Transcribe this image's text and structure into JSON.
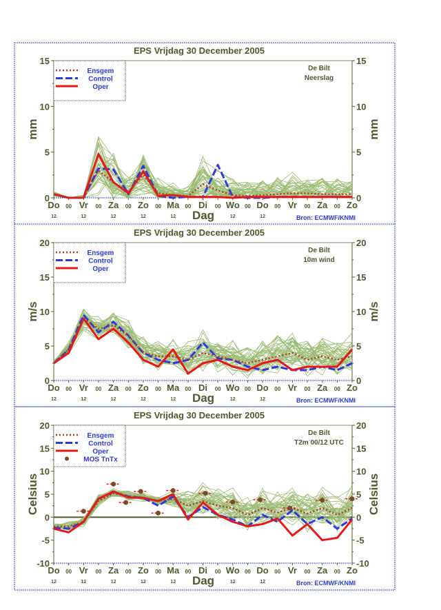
{
  "colors": {
    "text": "#4d5a2e",
    "ensemble": "#9bbb72",
    "ensgem": "#b23a2a",
    "control": "#2b3be0",
    "oper": "#e81818",
    "frame": "#3344cc",
    "legend_text": "#2b3be0"
  },
  "x_axis": {
    "label": "Dag",
    "ticks": [
      "Do",
      "00",
      "Vr",
      "00",
      "Za",
      "00",
      "Zo",
      "00",
      "Ma",
      "00",
      "Di",
      "00",
      "Wo",
      "00",
      "Do",
      "00",
      "Vr",
      "00",
      "Za",
      "00",
      "Zo"
    ],
    "sub_ticks": [
      "12",
      "",
      "12",
      "",
      "12",
      "",
      "12",
      "",
      "12",
      "",
      "",
      "",
      "12",
      "",
      "12",
      "",
      "",
      "",
      "",
      "",
      ""
    ],
    "source": "Bron: ECMWF/KNMI"
  },
  "chart_data": [
    {
      "type": "line",
      "title": "EPS  Vrijdag   30 December  2005",
      "station": "De Bilt",
      "variable": "Neerslag",
      "ylabel": "mm",
      "ylim": [
        0,
        15
      ],
      "yticks": [
        0,
        5,
        10,
        15
      ],
      "legend": [
        "Ensgem",
        "Control",
        "Oper"
      ],
      "legend_position": "top-left",
      "x_hours_step": 12,
      "series": [
        {
          "name": "Ensgem",
          "values": [
            0.4,
            0,
            0,
            3.0,
            1.7,
            0.7,
            2.5,
            0.5,
            0.3,
            0.2,
            1.5,
            0.8,
            0.3,
            0.2,
            0.3,
            0.4,
            0.5,
            0.5,
            0.4,
            0.4,
            0.4
          ]
        },
        {
          "name": "Control",
          "values": [
            0.4,
            0,
            0,
            3.2,
            3.1,
            0.4,
            3.5,
            0.2,
            0,
            0.1,
            0.1,
            3.6,
            0.1,
            0,
            0,
            0.1,
            0.1,
            0.1,
            0.1,
            0.1,
            0.1
          ]
        },
        {
          "name": "Oper",
          "values": [
            0.4,
            0,
            0,
            4.8,
            1.7,
            0.5,
            2.9,
            0.2,
            0.3,
            0.1,
            0.1,
            0.1,
            0,
            0.1,
            0.1,
            0.1,
            0.1,
            0.1,
            0.1,
            0.1,
            0.1
          ]
        }
      ],
      "ensemble_spread": [
        0.2,
        0.1,
        0.3,
        2.8,
        2.2,
        1.5,
        2.2,
        1.2,
        1.0,
        1.0,
        2.8,
        1.6,
        1.4,
        1.2,
        1.4,
        1.6,
        1.6,
        1.5,
        1.4,
        1.4,
        1.2
      ],
      "ensemble_floor": 0
    },
    {
      "type": "line",
      "title": "EPS  Vrijdag   30 December  2005",
      "station": "De Bilt",
      "variable": "10m wind",
      "ylabel": "m/s",
      "ylim": [
        0,
        20
      ],
      "yticks": [
        0,
        5,
        10,
        15,
        20
      ],
      "legend": [
        "Ensgem",
        "Control",
        "Oper"
      ],
      "legend_position": "top-left",
      "x_hours_step": 12,
      "series": [
        {
          "name": "Ensgem",
          "values": [
            2.5,
            4.5,
            9.0,
            7.5,
            8.0,
            6.5,
            4.0,
            3.5,
            3.5,
            3.0,
            4.0,
            3.5,
            3.0,
            2.5,
            3.0,
            3.5,
            4.0,
            3.0,
            3.5,
            3.0,
            3.5
          ]
        },
        {
          "name": "Control",
          "values": [
            2.5,
            4.5,
            9.5,
            7.0,
            8.5,
            6.5,
            4.0,
            3.0,
            2.5,
            3.0,
            5.5,
            3.2,
            3.0,
            2.0,
            1.5,
            2.0,
            1.5,
            1.5,
            2.0,
            1.5,
            2.5
          ]
        },
        {
          "name": "Oper",
          "values": [
            2.5,
            4.0,
            9.0,
            6.0,
            7.5,
            5.5,
            3.0,
            2.0,
            4.5,
            1.0,
            2.5,
            3.0,
            2.0,
            1.5,
            2.5,
            3.0,
            1.5,
            2.0,
            2.0,
            2.0,
            4.5
          ]
        }
      ],
      "ensemble_spread": [
        0.3,
        0.8,
        1.5,
        1.6,
        1.6,
        1.6,
        1.6,
        1.6,
        1.8,
        2.0,
        2.5,
        2.2,
        2.0,
        2.0,
        2.2,
        2.4,
        2.4,
        2.4,
        2.4,
        2.4,
        2.4
      ],
      "ensemble_floor": 0
    },
    {
      "type": "line",
      "title": "EPS  Vrijdag   30 December  2005",
      "station": "De Bilt",
      "variable": "T2m 00/12 UTC",
      "ylabel": "Celsius",
      "ylim": [
        -10,
        20
      ],
      "yticks": [
        -10,
        -5,
        0,
        5,
        10,
        15,
        20
      ],
      "legend": [
        "Ensgem",
        "Control",
        "Oper",
        "MOS TnTx"
      ],
      "legend_position": "top-left",
      "x_hours_step": 12,
      "series": [
        {
          "name": "Ensgem",
          "values": [
            -2.0,
            -2.0,
            -1.0,
            3.5,
            5.2,
            4.5,
            4.3,
            3.5,
            4.0,
            2.5,
            3.5,
            2.5,
            2.0,
            0.5,
            2.0,
            1.0,
            2.0,
            0.8,
            2.0,
            0.5,
            2.0
          ]
        },
        {
          "name": "Control",
          "values": [
            -2.3,
            -2.5,
            -1.0,
            4.0,
            5.5,
            4.5,
            4.2,
            2.5,
            4.5,
            0,
            2.2,
            0.5,
            -0.5,
            -2.0,
            0.5,
            -1.0,
            1.5,
            -1.5,
            0,
            -2.5,
            -0.3
          ]
        },
        {
          "name": "Oper",
          "values": [
            -2.5,
            -3.3,
            -1.0,
            4.0,
            5.6,
            4.3,
            4.2,
            3.5,
            5.0,
            -0.5,
            3.2,
            0.5,
            -1.0,
            -2.0,
            -1.5,
            -0.3,
            -4.0,
            -1.5,
            -5.0,
            -4.5,
            -0.5
          ]
        }
      ],
      "mos_tntx": [
        [
          24,
          1.3
        ],
        [
          48,
          7.2
        ],
        [
          58,
          3.2
        ],
        [
          70,
          5.6
        ],
        [
          84,
          0.9
        ],
        [
          96,
          5.8
        ],
        [
          122,
          5.2
        ],
        [
          144,
          3.3
        ],
        [
          166,
          3.8
        ],
        [
          190,
          2.0
        ],
        [
          216,
          3.7
        ],
        [
          240,
          4.0
        ]
      ],
      "ensemble_spread": [
        0.6,
        0.8,
        1.0,
        1.4,
        0.8,
        0.8,
        0.8,
        1.0,
        1.4,
        2.5,
        3.0,
        3.0,
        3.0,
        3.0,
        3.2,
        3.4,
        3.4,
        3.5,
        3.6,
        3.6,
        3.6
      ],
      "ensemble_floor": null
    }
  ]
}
